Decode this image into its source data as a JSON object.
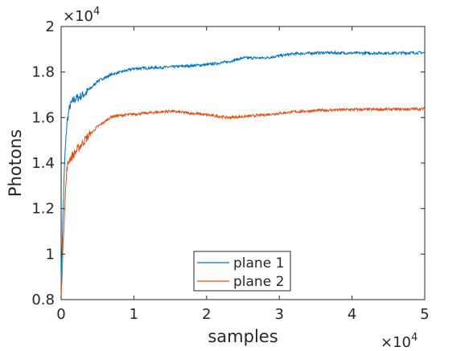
{
  "chart_data": {
    "type": "line",
    "xlabel": "samples",
    "ylabel": "Photons",
    "x_exponent": "×10",
    "x_exponent_power": "4",
    "y_exponent": "×10",
    "y_exponent_power": "4",
    "xlim": [
      0,
      5
    ],
    "ylim": [
      0.8,
      2
    ],
    "x_ticks": [
      0,
      1,
      2,
      3,
      4,
      5
    ],
    "x_tick_labels": [
      "0",
      "1",
      "2",
      "3",
      "4",
      "5"
    ],
    "y_ticks": [
      0.8,
      1.0,
      1.2,
      1.4,
      1.6,
      1.8,
      2.0
    ],
    "y_tick_labels": [
      "0.8",
      "1",
      "1.2",
      "1.4",
      "1.6",
      "1.8",
      "2"
    ],
    "grid": false,
    "legend_position": "bottom-center",
    "series": [
      {
        "name": "plane 1",
        "color": "#0072bd",
        "x": [
          0,
          0.02,
          0.05,
          0.08,
          0.12,
          0.18,
          0.25,
          0.35,
          0.5,
          0.7,
          1.0,
          1.5,
          2.0,
          2.3,
          2.5,
          2.8,
          3.2,
          3.6,
          4.0,
          4.5,
          5.0
        ],
        "y": [
          0.88,
          1.12,
          1.42,
          1.58,
          1.65,
          1.68,
          1.69,
          1.71,
          1.76,
          1.79,
          1.815,
          1.822,
          1.832,
          1.845,
          1.862,
          1.862,
          1.88,
          1.885,
          1.883,
          1.883,
          1.885
        ]
      },
      {
        "name": "plane 2",
        "color": "#d95319",
        "x": [
          0,
          0.02,
          0.05,
          0.08,
          0.12,
          0.18,
          0.25,
          0.35,
          0.5,
          0.7,
          1.0,
          1.5,
          2.0,
          2.3,
          2.5,
          2.8,
          3.2,
          3.6,
          4.0,
          4.5,
          5.0
        ],
        "y": [
          0.8,
          0.98,
          1.22,
          1.38,
          1.42,
          1.44,
          1.47,
          1.51,
          1.56,
          1.605,
          1.615,
          1.628,
          1.612,
          1.6,
          1.604,
          1.612,
          1.625,
          1.632,
          1.635,
          1.636,
          1.638
        ]
      }
    ]
  }
}
